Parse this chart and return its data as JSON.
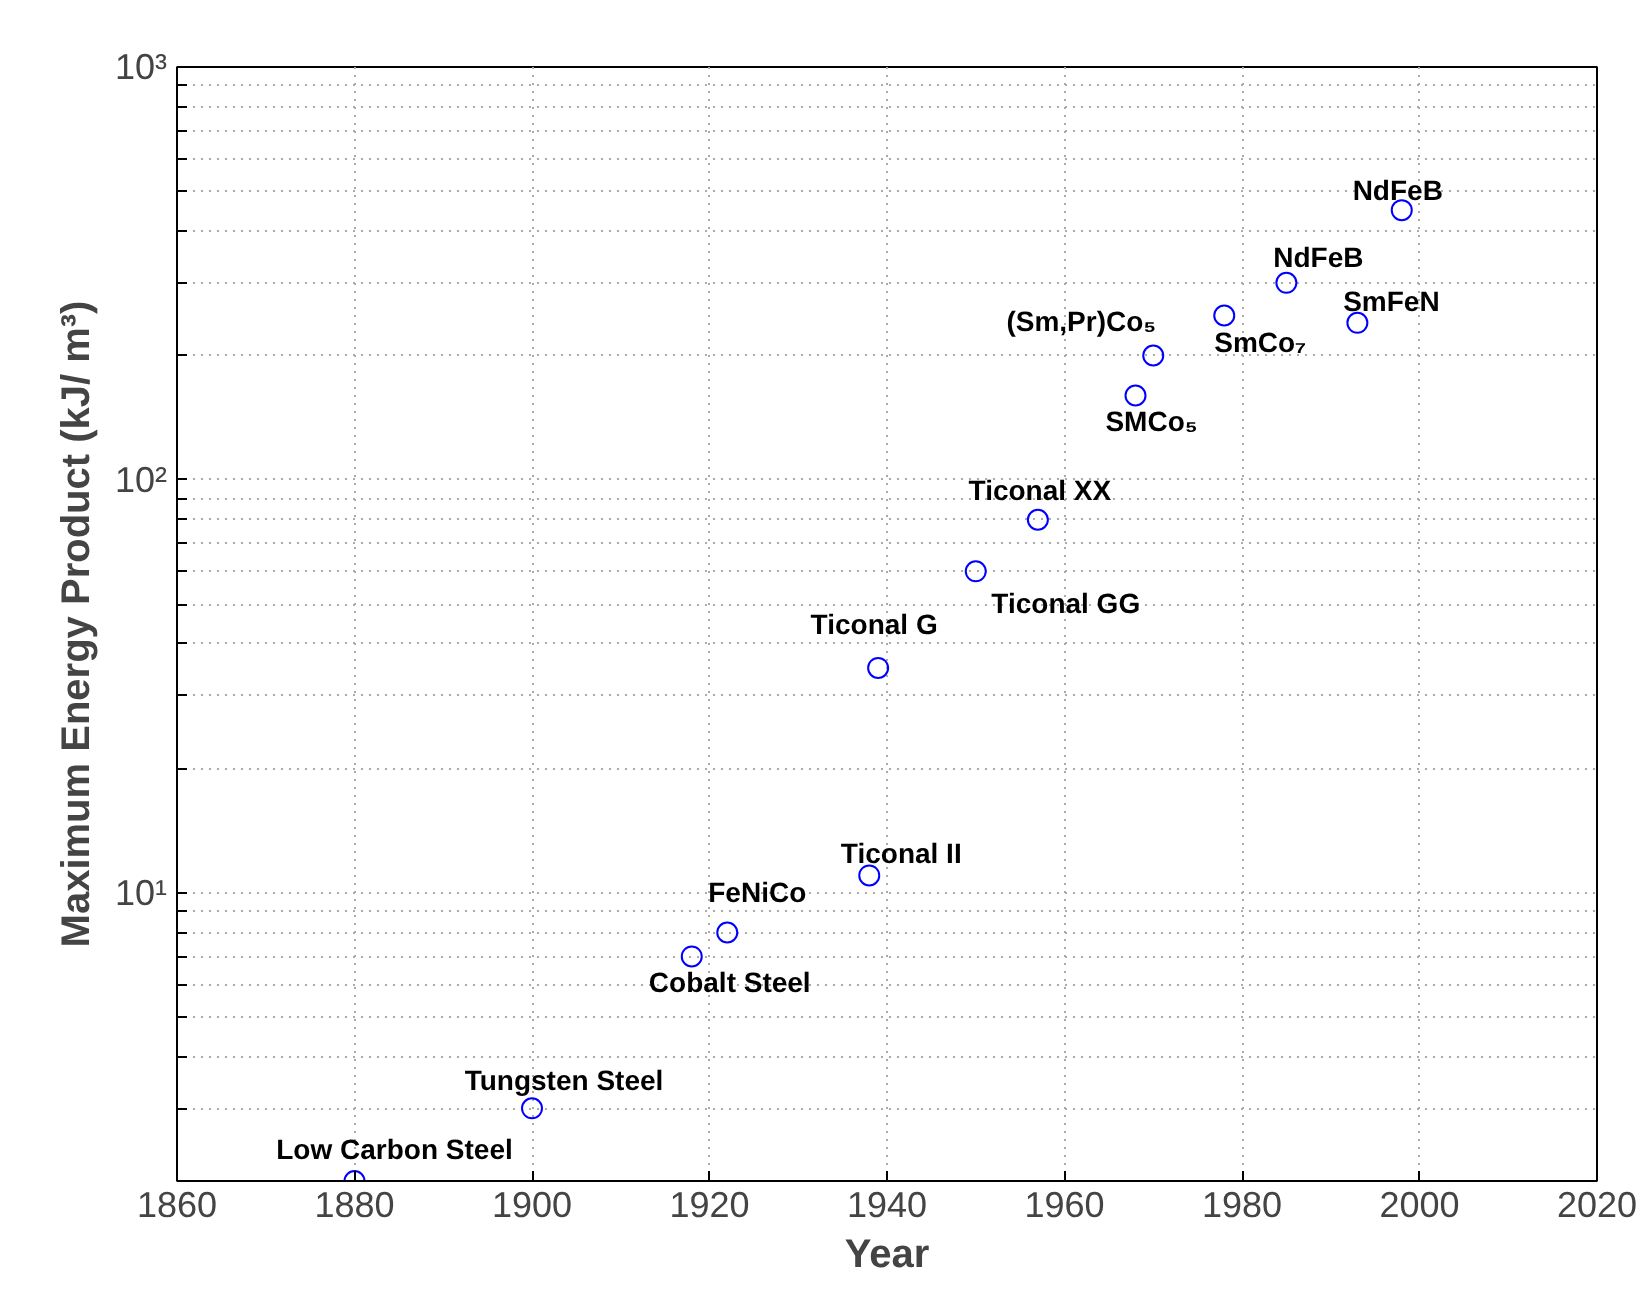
{
  "chart_data": {
    "type": "scatter",
    "xlabel": "Year",
    "ylabel": "Maximum Energy Product (kJ/ m³)",
    "x": [
      1880,
      1900,
      1918,
      1922,
      1938,
      1939,
      1950,
      1957,
      1968,
      1970,
      1978,
      1985,
      1993,
      1998
    ],
    "series": [
      {
        "color": "#0000ff",
        "values": [
          2,
          3,
          7,
          8,
          11,
          35,
          60,
          80,
          160,
          200,
          250,
          300,
          240,
          450
        ]
      }
    ],
    "marker": "circle",
    "log": "y",
    "grid": true,
    "xlim": [
      1860,
      2020
    ],
    "xticks": [
      1860,
      1880,
      1900,
      1920,
      1940,
      1960,
      1980,
      2000,
      2020
    ],
    "ylim": [
      2,
      1000
    ],
    "yticks": [
      {
        "value": 3,
        "label": null
      },
      {
        "value": 4,
        "label": null
      },
      {
        "value": 5,
        "label": null
      },
      {
        "value": 6,
        "label": null
      },
      {
        "value": 7,
        "label": null
      },
      {
        "value": 8,
        "label": null
      },
      {
        "value": 9,
        "label": null
      },
      {
        "value": 10,
        "label": "10¹"
      },
      {
        "value": 20,
        "label": null
      },
      {
        "value": 30,
        "label": null
      },
      {
        "value": 40,
        "label": null
      },
      {
        "value": 50,
        "label": null
      },
      {
        "value": 60,
        "label": null
      },
      {
        "value": 70,
        "label": null
      },
      {
        "value": 80,
        "label": null
      },
      {
        "value": 90,
        "label": null
      },
      {
        "value": 100,
        "label": "10²"
      },
      {
        "value": 200,
        "label": null
      },
      {
        "value": 300,
        "label": null
      },
      {
        "value": 400,
        "label": null
      },
      {
        "value": 500,
        "label": null
      },
      {
        "value": 600,
        "label": null
      },
      {
        "value": 700,
        "label": null
      },
      {
        "value": 800,
        "label": null
      },
      {
        "value": 900,
        "label": null
      },
      {
        "value": 1000,
        "label": "10³"
      }
    ],
    "annotations": [
      {
        "text": "Low Carbon Steel",
        "x": 1880,
        "y": 2
      },
      {
        "text": "Tungsten Steel",
        "x": 1900,
        "y": 3
      },
      {
        "text": "Cobalt Steel",
        "x": 1918,
        "y": 7
      },
      {
        "text": "FeNiCo",
        "x": 1922,
        "y": 8
      },
      {
        "text": "Ticonal II",
        "x": 1938,
        "y": 11
      },
      {
        "text": "Ticonal G",
        "x": 1939,
        "y": 35
      },
      {
        "text": "Ticonal GG",
        "x": 1950,
        "y": 60
      },
      {
        "text": "Ticonal XX",
        "x": 1957,
        "y": 80
      },
      {
        "text": "SMCo₅",
        "x": 1968,
        "y": 160
      },
      {
        "text": "(Sm,Pr)Co₅",
        "x": 1970,
        "y": 200
      },
      {
        "text": "SmCo₇",
        "x": 1978,
        "y": 250
      },
      {
        "text": "NdFeB",
        "x": 1985,
        "y": 300
      },
      {
        "text": "SmFeN",
        "x": 1993,
        "y": 240
      },
      {
        "text": "NdFeB",
        "x": 1998,
        "y": 450
      }
    ]
  }
}
